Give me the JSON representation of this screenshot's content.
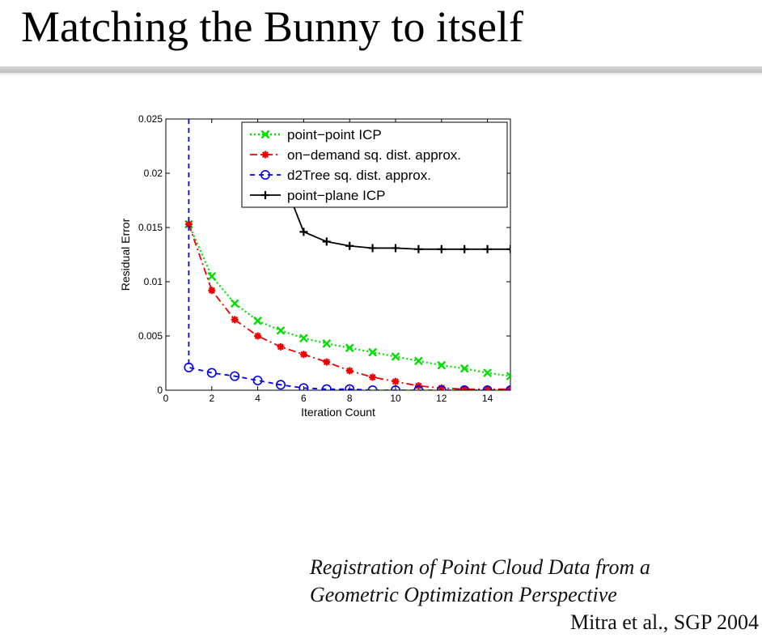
{
  "slide": {
    "title": "Matching the Bunny to itself",
    "citation_line1": "Registration of Point Cloud Data from a",
    "citation_line2": "Geometric Optimization Perspective",
    "author": "Mitra et al., SGP 2004"
  },
  "chart_data": {
    "type": "line",
    "title": "",
    "xlabel": "Iteration Count",
    "ylabel": "Residual Error",
    "xlim": [
      0,
      15
    ],
    "ylim": [
      0,
      0.025
    ],
    "xticks": [
      "0",
      "2",
      "4",
      "6",
      "8",
      "10",
      "12",
      "14"
    ],
    "xtick_values": [
      0,
      2,
      4,
      6,
      8,
      10,
      12,
      14
    ],
    "yticks": [
      "0",
      "0.005",
      "0.01",
      "0.015",
      "0.02",
      "0.025"
    ],
    "ytick_values": [
      0,
      0.005,
      0.01,
      0.015,
      0.02,
      0.025
    ],
    "legend_position": "top-right",
    "series": [
      {
        "name": "point−point ICP",
        "color": "#00dd00",
        "marker": "x",
        "linestyle": "dotted",
        "x": [
          1,
          2,
          3,
          4,
          5,
          6,
          7,
          8,
          9,
          10,
          11,
          12,
          13,
          14,
          15
        ],
        "values": [
          0.0153,
          0.0105,
          0.008,
          0.0064,
          0.0055,
          0.0048,
          0.0043,
          0.0039,
          0.0035,
          0.0031,
          0.0027,
          0.0023,
          0.002,
          0.0016,
          0.0013
        ]
      },
      {
        "name": "on−demand sq. dist. approx.",
        "color": "#ee0000",
        "marker": "asterisk",
        "linestyle": "dashdot",
        "x": [
          1,
          2,
          3,
          4,
          5,
          6,
          7,
          8,
          9,
          10,
          11,
          12,
          13,
          14,
          15
        ],
        "values": [
          0.0153,
          0.0092,
          0.0065,
          0.005,
          0.004,
          0.0033,
          0.0026,
          0.0018,
          0.0012,
          0.0008,
          0.0004,
          0.0002,
          0.0001,
          0.0001,
          0.0001
        ]
      },
      {
        "name": "d2Tree sq. dist. approx.",
        "color": "#0000ee",
        "marker": "circle",
        "linestyle": "dashed",
        "x": [
          1,
          1,
          2,
          3,
          4,
          5,
          6,
          7,
          8,
          9,
          10,
          11,
          12,
          13,
          14,
          15
        ],
        "values": [
          0.025,
          0.0021,
          0.0016,
          0.0013,
          0.0009,
          0.0005,
          0.0002,
          0.0001,
          0.0001,
          0.0,
          0.0,
          0.0,
          0.0,
          0.0,
          0.0,
          0.0
        ]
      },
      {
        "name": "point−plane ICP",
        "color": "#000000",
        "marker": "plus",
        "linestyle": "solid",
        "x": [
          5.5,
          6,
          7,
          8,
          9,
          10,
          11,
          12,
          13,
          14,
          15
        ],
        "values": [
          0.0173,
          0.0146,
          0.0137,
          0.0133,
          0.0131,
          0.0131,
          0.013,
          0.013,
          0.013,
          0.013,
          0.013
        ]
      }
    ]
  }
}
